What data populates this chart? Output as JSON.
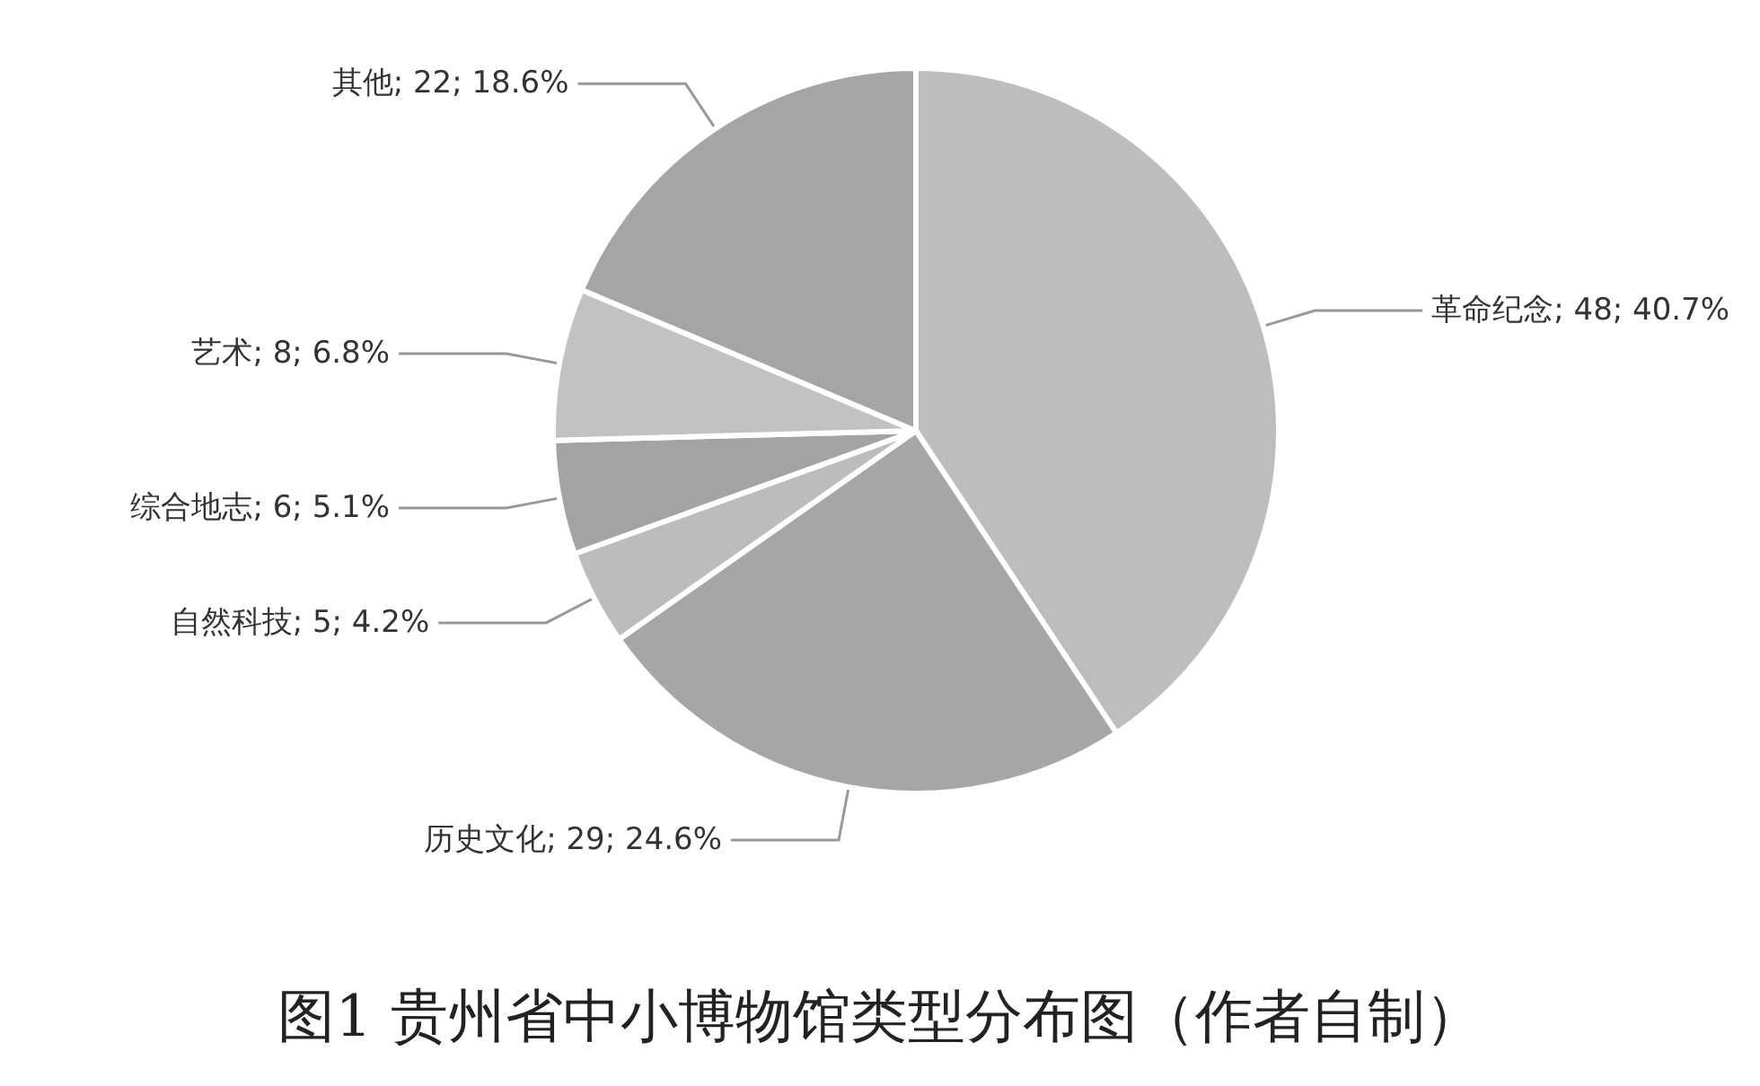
{
  "chart_data": {
    "type": "pie",
    "title": "图1 贵州省中小博物馆类型分布图（作者自制）",
    "categories": [
      "革命纪念",
      "历史文化",
      "自然科技",
      "综合地志",
      "艺术",
      "其他"
    ],
    "values": [
      48,
      29,
      5,
      6,
      8,
      22
    ],
    "value_labels": [
      "48; 40.7%",
      "29; 24.6%",
      "5; 4.2%",
      "6; 5.1%",
      "8; 6.8%",
      "22; 18.6%"
    ],
    "colors": [
      "#bdbdbd",
      "#a6a6a6",
      "#bcbcbc",
      "#a3a3a3",
      "#c2c2c2",
      "#a5a5a5"
    ],
    "legend": false
  }
}
